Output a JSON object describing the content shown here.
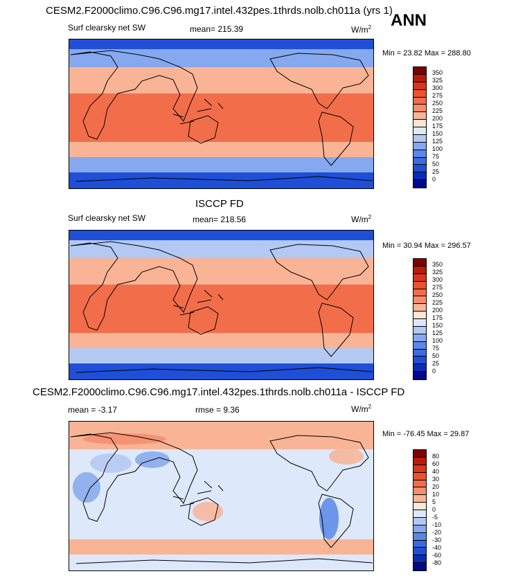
{
  "figure": {
    "season": "ANN",
    "panels": [
      {
        "title": "CESM2.F2000climo.C96.C96.mg17.intel.432pes.1thrds.nolb.ch011a (yrs 1)",
        "left_label": "Surf clearsky net SW",
        "mean_label": "mean= 215.39",
        "units_label": "W/m",
        "units_sup": "2",
        "minmax_label": "Min = 23.82 Max = 288.80",
        "colorbar": {
          "levels": [
            "350",
            "325",
            "300",
            "275",
            "250",
            "225",
            "200",
            "175",
            "150",
            "125",
            "100",
            "75",
            "50",
            "25",
            "0"
          ],
          "colors": [
            "#7f0000",
            "#b71c0c",
            "#d8361a",
            "#ec5230",
            "#f26e4b",
            "#f68d6c",
            "#f9b496",
            "#fde6d6",
            "#dde8fa",
            "#b3c9f4",
            "#86a8ee",
            "#5a88e8",
            "#3a6be0",
            "#1e4fd6",
            "#0a2cb8",
            "#00098c"
          ]
        },
        "fields": {
          "north_polar": 40,
          "north_mid": 120,
          "north_sub": 200,
          "tropics": 265,
          "south_sub": 200,
          "south_mid": 120,
          "south_polar": 30
        }
      },
      {
        "title": "ISCCP FD",
        "left_label": "Surf clearsky net SW",
        "mean_label": "mean= 218.56",
        "units_label": "W/m",
        "units_sup": "2",
        "minmax_label": "Min = 30.94 Max = 296.57",
        "colorbar": {
          "levels": [
            "350",
            "325",
            "300",
            "275",
            "250",
            "225",
            "200",
            "175",
            "150",
            "125",
            "100",
            "75",
            "50",
            "25",
            "0"
          ],
          "colors": [
            "#7f0000",
            "#b71c0c",
            "#d8361a",
            "#ec5230",
            "#f26e4b",
            "#f68d6c",
            "#f9b496",
            "#fde6d6",
            "#dde8fa",
            "#b3c9f4",
            "#86a8ee",
            "#5a88e8",
            "#3a6be0",
            "#1e4fd6",
            "#0a2cb8",
            "#00098c"
          ]
        },
        "fields": {
          "north_polar": 45,
          "north_mid": 125,
          "north_sub": 205,
          "tropics": 270,
          "south_sub": 205,
          "south_mid": 125,
          "south_polar": 35
        }
      },
      {
        "title": "CESM2.F2000climo.C96.C96.mg17.intel.432pes.1thrds.nolb.ch011a - ISCCP FD",
        "left_label": "mean =  -3.17",
        "mean_label": "rmse =   9.36",
        "units_label": "W/m",
        "units_sup": "2",
        "minmax_label": "Min = -76.45 Max =  29.87",
        "colorbar": {
          "levels": [
            "80",
            "60",
            "40",
            "30",
            "20",
            "10",
            "5",
            "0",
            "-5",
            "-10",
            "-20",
            "-30",
            "-40",
            "-60",
            "-80"
          ],
          "colors": [
            "#7f0000",
            "#b71c0c",
            "#d8361a",
            "#ec5230",
            "#f26e4b",
            "#f68d6c",
            "#f9b496",
            "#fde6d6",
            "#dde8fa",
            "#b3c9f4",
            "#86a8ee",
            "#5a88e8",
            "#3a6be0",
            "#1e4fd6",
            "#0a2cb8",
            "#00098c"
          ]
        },
        "fields": {
          "north_polar": 7,
          "north_mid": 6,
          "north_sub": -3,
          "tropics": -4,
          "south_sub": -3,
          "south_mid": 8,
          "south_polar": -5
        }
      }
    ]
  }
}
